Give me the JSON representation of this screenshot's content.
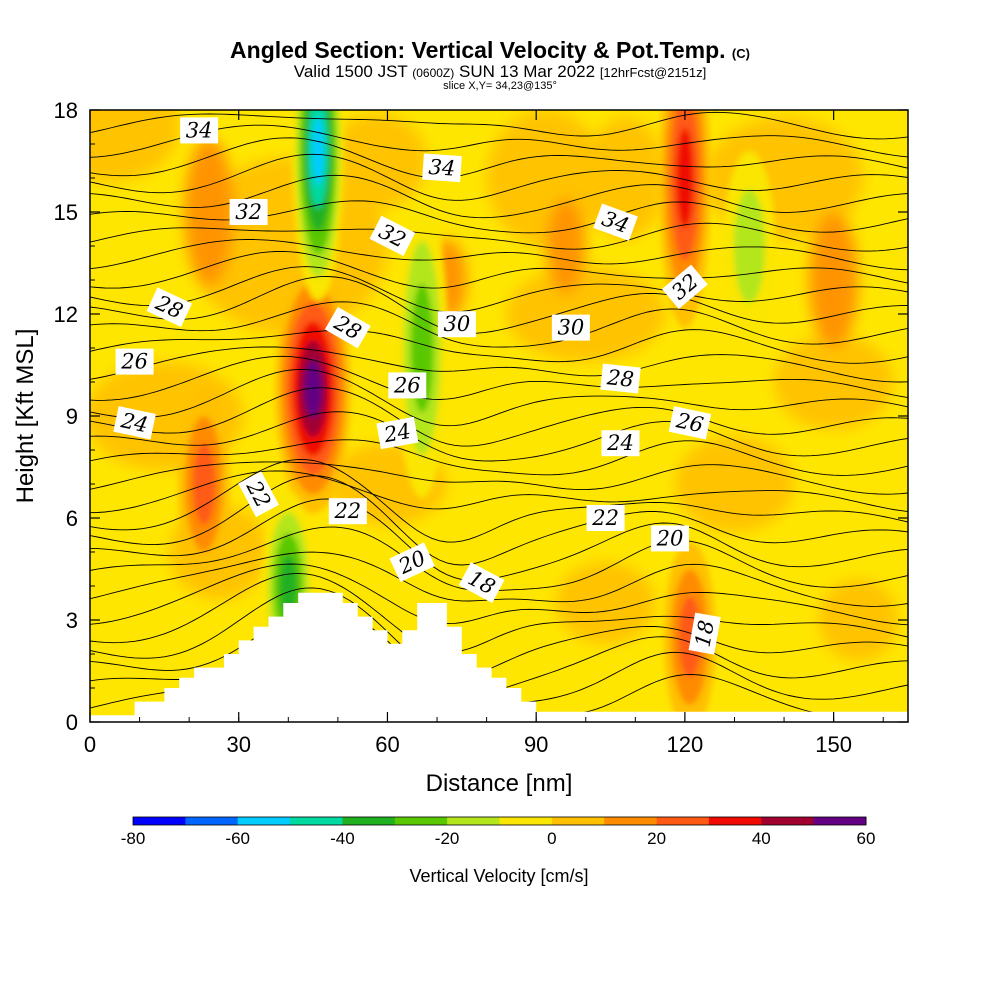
{
  "chart_data": {
    "type": "heatmap",
    "title": "Angled Section: Vertical Velocity & Pot.Temp.",
    "title_mark": "(C)",
    "subtitle": {
      "valid": "Valid 1500 JST",
      "utc": "(0600Z)",
      "date": "SUN 13 Mar 2022",
      "forecast": "[12hrFcst@2151z]"
    },
    "slice_text": "slice X,Y= 34,23@135°",
    "xlabel": "Distance [nm]",
    "ylabel": "Height [Kft MSL]",
    "xlim": [
      0,
      165
    ],
    "ylim": [
      0,
      18
    ],
    "x_ticks": [
      "0",
      "30",
      "60",
      "90",
      "120",
      "150"
    ],
    "y_ticks": [
      "0",
      "3",
      "6",
      "9",
      "12",
      "15",
      "18"
    ],
    "colorbar": {
      "label": "Vertical Velocity [cm/s]",
      "ticks": [
        "-80",
        "-60",
        "-40",
        "-20",
        "0",
        "20",
        "40",
        "60"
      ],
      "range": [
        -80,
        60
      ],
      "colors": [
        "#0000ff",
        "#0066ff",
        "#00ccff",
        "#00d9a0",
        "#20b020",
        "#5ac800",
        "#b4e61e",
        "#fae600",
        "#ffc000",
        "#ff8c00",
        "#ff5a14",
        "#f00a00",
        "#a00030",
        "#640082"
      ]
    },
    "velocity_features": [
      {
        "name": "updraft core",
        "x": 45,
        "y": 9.8,
        "w_max": 60
      },
      {
        "name": "updraft west",
        "x": 23,
        "y": 7,
        "w_max": 25
      },
      {
        "name": "updraft east upper",
        "x": 120,
        "y": 16,
        "w_max": 40
      },
      {
        "name": "updraft east lower",
        "x": 121,
        "y": 2.5,
        "w_max": 30
      },
      {
        "name": "downdraft upper",
        "x": 46,
        "y": 16.8,
        "w_max": -60
      },
      {
        "name": "downdraft terrain",
        "x": 40,
        "y": 4,
        "w_max": -40
      },
      {
        "name": "downdraft column",
        "x": 67,
        "y": 11,
        "w_max": -30
      },
      {
        "name": "downdraft east",
        "x": 133,
        "y": 14,
        "w_max": -20
      }
    ],
    "terrain_top_kft": [
      [
        0,
        0.2
      ],
      [
        9,
        0.2
      ],
      [
        9,
        0.6
      ],
      [
        15,
        0.6
      ],
      [
        15,
        1.0
      ],
      [
        18,
        1.0
      ],
      [
        18,
        1.3
      ],
      [
        21,
        1.3
      ],
      [
        21,
        1.6
      ],
      [
        27,
        1.6
      ],
      [
        27,
        2.0
      ],
      [
        30,
        2.0
      ],
      [
        30,
        2.4
      ],
      [
        33,
        2.4
      ],
      [
        33,
        2.8
      ],
      [
        36,
        2.8
      ],
      [
        36,
        3.1
      ],
      [
        39,
        3.1
      ],
      [
        39,
        3.5
      ],
      [
        42,
        3.5
      ],
      [
        42,
        3.8
      ],
      [
        51,
        3.8
      ],
      [
        51,
        3.5
      ],
      [
        54,
        3.5
      ],
      [
        54,
        3.1
      ],
      [
        57,
        3.1
      ],
      [
        57,
        2.7
      ],
      [
        60,
        2.7
      ],
      [
        60,
        2.3
      ],
      [
        63,
        2.3
      ],
      [
        63,
        2.7
      ],
      [
        66,
        2.7
      ],
      [
        66,
        3.5
      ],
      [
        72,
        3.5
      ],
      [
        72,
        2.8
      ],
      [
        75,
        2.8
      ],
      [
        75,
        2.0
      ],
      [
        78,
        2.0
      ],
      [
        78,
        1.6
      ],
      [
        81,
        1.6
      ],
      [
        81,
        1.3
      ],
      [
        84,
        1.3
      ],
      [
        84,
        1.0
      ],
      [
        87,
        1.0
      ],
      [
        87,
        0.6
      ],
      [
        90,
        0.6
      ],
      [
        90,
        0.3
      ],
      [
        165,
        0.3
      ]
    ],
    "isentropes_label": "Potential temperature (C)",
    "contour_labels": [
      {
        "text": "34",
        "x": 22,
        "y": 17.4,
        "angle": 0
      },
      {
        "text": "34",
        "x": 71,
        "y": 16.3,
        "angle": 4
      },
      {
        "text": "34",
        "x": 106,
        "y": 14.7,
        "angle": 20
      },
      {
        "text": "32",
        "x": 32,
        "y": 15.0,
        "angle": 0
      },
      {
        "text": "32",
        "x": 61,
        "y": 14.3,
        "angle": 27
      },
      {
        "text": "32",
        "x": 120,
        "y": 12.8,
        "angle": -40
      },
      {
        "text": "30",
        "x": 74,
        "y": 11.7,
        "angle": 0
      },
      {
        "text": "30",
        "x": 97,
        "y": 11.6,
        "angle": 0
      },
      {
        "text": "28",
        "x": 16,
        "y": 12.2,
        "angle": 25
      },
      {
        "text": "28",
        "x": 52,
        "y": 11.6,
        "angle": 30
      },
      {
        "text": "28",
        "x": 107,
        "y": 10.1,
        "angle": 6
      },
      {
        "text": "26",
        "x": 9,
        "y": 10.6,
        "angle": 0
      },
      {
        "text": "26",
        "x": 64,
        "y": 9.9,
        "angle": 0
      },
      {
        "text": "26",
        "x": 121,
        "y": 8.8,
        "angle": 12
      },
      {
        "text": "24",
        "x": 9,
        "y": 8.8,
        "angle": 12
      },
      {
        "text": "24",
        "x": 62,
        "y": 8.5,
        "angle": -10
      },
      {
        "text": "24",
        "x": 107,
        "y": 8.2,
        "angle": 0
      },
      {
        "text": "22",
        "x": 34,
        "y": 6.7,
        "angle": 62
      },
      {
        "text": "22",
        "x": 52,
        "y": 6.2,
        "angle": 0
      },
      {
        "text": "22",
        "x": 104,
        "y": 6.0,
        "angle": 0
      },
      {
        "text": "20",
        "x": 65,
        "y": 4.7,
        "angle": -25
      },
      {
        "text": "20",
        "x": 117,
        "y": 5.4,
        "angle": 0
      },
      {
        "text": "18",
        "x": 79,
        "y": 4.1,
        "angle": 28
      },
      {
        "text": "18",
        "x": 124,
        "y": 2.6,
        "angle": -80
      }
    ]
  }
}
